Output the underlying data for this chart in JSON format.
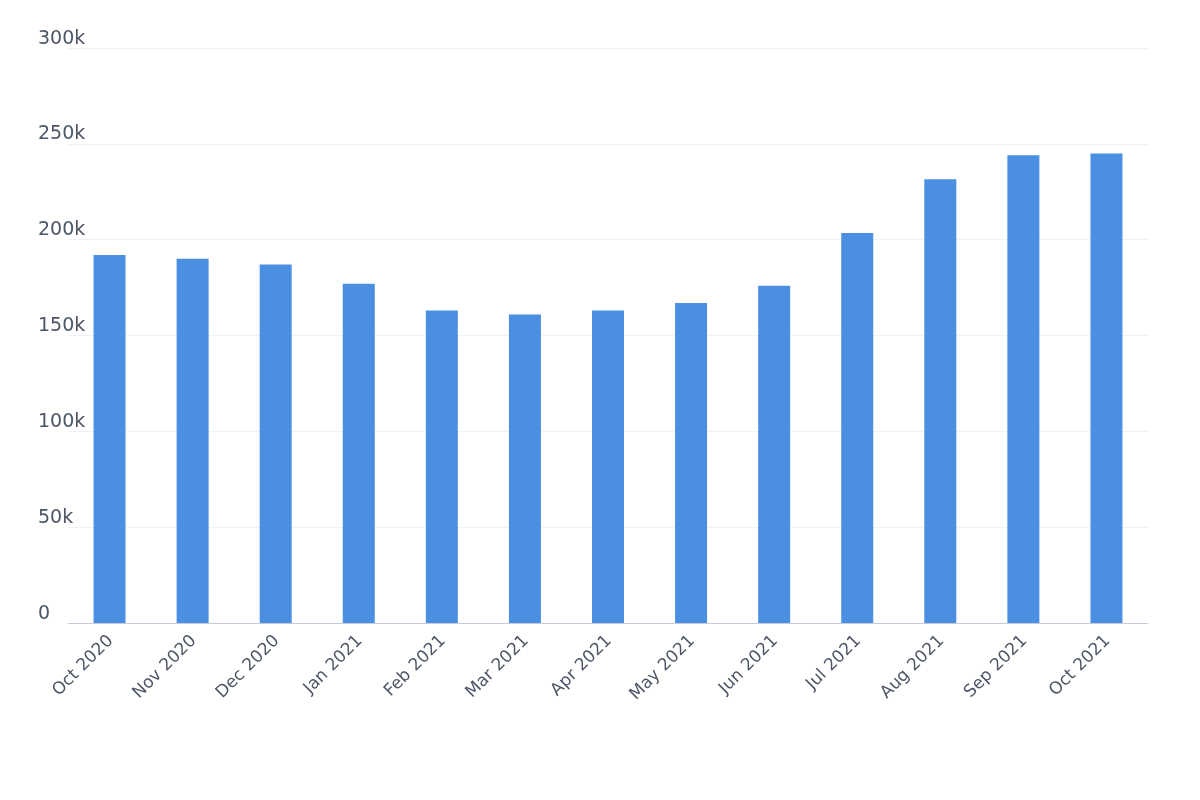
{
  "chart_data": {
    "type": "bar",
    "categories": [
      "Oct 2020",
      "Nov 2020",
      "Dec 2020",
      "Jan 2021",
      "Feb 2021",
      "Mar 2021",
      "Apr 2021",
      "May 2021",
      "Jun 2021",
      "Jul 2021",
      "Aug 2021",
      "Sep 2021",
      "Oct 2021"
    ],
    "values": [
      192000,
      190000,
      187000,
      177000,
      163000,
      161000,
      163000,
      167000,
      176000,
      203500,
      231500,
      244000,
      245000
    ],
    "color": "#4a8fe2",
    "ylim": [
      0,
      300000
    ],
    "yticks": [
      {
        "value": 0,
        "label": "0"
      },
      {
        "value": 50000,
        "label": "50k"
      },
      {
        "value": 100000,
        "label": "100k"
      },
      {
        "value": 150000,
        "label": "150k"
      },
      {
        "value": 200000,
        "label": "200k"
      },
      {
        "value": 250000,
        "label": "250k"
      },
      {
        "value": 300000,
        "label": "300k"
      }
    ],
    "grid": "y"
  }
}
